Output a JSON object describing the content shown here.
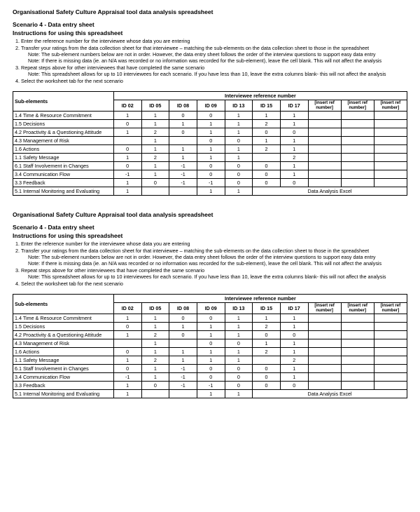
{
  "title": "Organisational Safety Culture Appraisal tool data analysis spreadsheet",
  "subtitle": "Scenario 4 - Data entry sheet",
  "instrHead": "Instructions for using this spreadsheet",
  "instr": {
    "i1": "Enter the reference number for the interviewee whose data you are entering",
    "i2": "Transfer your ratings from the data collection sheet for that interviewee – matching the sub-elements on the data collection sheet to those in the spreadsheet",
    "i2n1": "Note: The sub-element numbers below are not in order. However, the data entry sheet follows the order of the interview questions to support easy data entry",
    "i2n2": "Note: If there is missing data (ie. an N/A was recorded or no information was recorded for the sub-element), leave the cell blank. This will not affect the analysis",
    "i3": "Repeat steps above for other interviewees that have completed the same scenario",
    "i3n1": "Note: This spreadsheet allows for up to 10 interviewees for each scenario. If you have less than 10, leave the extra columns blank- this will not affect the analysis",
    "i4": "Select the worksheet tab for the next scenario"
  },
  "table": {
    "groupHeader": "Interviewee reference number",
    "subElHeader": "Sub-elements",
    "ids": [
      "ID 02",
      "ID 05",
      "ID 08",
      "ID 09",
      "ID 13",
      "ID 15",
      "ID 17"
    ],
    "insert": "[insert ref number]",
    "mergedText": "Data Analysis Excel",
    "rows": [
      {
        "label": "1.4 Time & Resource Commitment",
        "v": [
          "1",
          "1",
          "0",
          "0",
          "1",
          "1",
          "1"
        ]
      },
      {
        "label": "1.5 Decisions",
        "v": [
          "0",
          "1",
          "1",
          "1",
          "1",
          "2",
          "1"
        ]
      },
      {
        "label": "4.2 Proactivity & a Questioning Attitude",
        "v": [
          "1",
          "2",
          "0",
          "1",
          "1",
          "0",
          "0"
        ]
      },
      {
        "label": "4.3 Management of Risk",
        "v": [
          "",
          "1",
          "",
          "0",
          "0",
          "1",
          "1"
        ]
      },
      {
        "label": "1.6 Actions",
        "v": [
          "0",
          "1",
          "1",
          "1",
          "1",
          "2",
          "1"
        ]
      },
      {
        "label": "1.1 Safety Message",
        "v": [
          "1",
          "2",
          "1",
          "1",
          "1",
          "",
          "2"
        ]
      },
      {
        "label": "6.1 Staff Involvement in Changes",
        "v": [
          "0",
          "1",
          "-1",
          "0",
          "0",
          "0",
          "1"
        ]
      },
      {
        "label": "3.4 Communication Flow",
        "v": [
          "-1",
          "1",
          "-1",
          "0",
          "0",
          "0",
          "1"
        ]
      },
      {
        "label": "3.3 Feedback",
        "v": [
          "1",
          "0",
          "-1",
          "-1",
          "0",
          "0",
          "0"
        ]
      },
      {
        "label": "5.1 Internal Monitoring and Evaluating",
        "v": [
          "1",
          "",
          "",
          "1",
          "1"
        ],
        "merged": true
      }
    ]
  }
}
